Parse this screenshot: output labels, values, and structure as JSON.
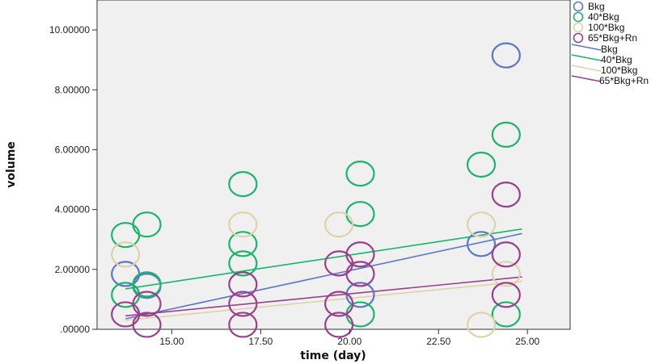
{
  "chart_data": {
    "type": "scatter",
    "xlabel": "time (day)",
    "ylabel": "volume",
    "xlim": [
      12.9,
      26.2
    ],
    "ylim": [
      0,
      11
    ],
    "xticks": [
      15,
      17.5,
      20,
      22.5,
      25
    ],
    "xtick_labels": [
      "15.00",
      "17.50",
      "20.00",
      "22.50",
      "25.00"
    ],
    "yticks": [
      0,
      2,
      4,
      6,
      8,
      10
    ],
    "ytick_labels": [
      ".00000",
      "2.00000",
      "4.00000",
      "6.00000",
      "8.00000",
      "10.00000"
    ],
    "grid": false,
    "legend_position": "right",
    "series": [
      {
        "name": "Bkg",
        "color": "#5b77c9",
        "marker": "circle-open",
        "points": [
          [
            13.7,
            1.85
          ],
          [
            14.3,
            1.45
          ],
          [
            20.3,
            1.15
          ],
          [
            23.7,
            2.85
          ],
          [
            24.4,
            9.15
          ]
        ]
      },
      {
        "name": "40*Bkg",
        "color": "#18b56a",
        "marker": "circle-open",
        "points": [
          [
            13.7,
            3.15
          ],
          [
            14.3,
            3.5
          ],
          [
            13.7,
            1.15
          ],
          [
            14.3,
            1.5
          ],
          [
            17.0,
            4.85
          ],
          [
            17.0,
            2.85
          ],
          [
            17.0,
            2.2
          ],
          [
            20.3,
            5.2
          ],
          [
            20.3,
            3.85
          ],
          [
            20.3,
            0.5
          ],
          [
            23.7,
            5.5
          ],
          [
            24.4,
            6.5
          ],
          [
            24.4,
            0.5
          ]
        ]
      },
      {
        "name": "100*Bkg",
        "color": "#ddd3a8",
        "marker": "circle-open",
        "points": [
          [
            13.7,
            2.5
          ],
          [
            17.0,
            3.5
          ],
          [
            19.7,
            3.5
          ],
          [
            23.7,
            3.5
          ],
          [
            23.7,
            0.15
          ],
          [
            24.4,
            1.85
          ]
        ]
      },
      {
        "name": "65*Bkg+Rn",
        "color": "#9b3f8c",
        "marker": "circle-open",
        "points": [
          [
            13.7,
            0.5
          ],
          [
            14.3,
            0.15
          ],
          [
            14.3,
            0.85
          ],
          [
            17.0,
            1.5
          ],
          [
            17.0,
            0.85
          ],
          [
            17.0,
            0.15
          ],
          [
            19.7,
            2.2
          ],
          [
            19.7,
            0.85
          ],
          [
            19.7,
            0.15
          ],
          [
            20.3,
            2.5
          ],
          [
            20.3,
            1.85
          ],
          [
            24.4,
            4.5
          ],
          [
            24.4,
            2.5
          ],
          [
            24.4,
            1.15
          ]
        ]
      }
    ],
    "fit_lines": [
      {
        "name": "Bkg",
        "color": "#5b77c9",
        "x": [
          13.7,
          24.85
        ],
        "y": [
          0.35,
          3.2
        ]
      },
      {
        "name": "40*Bkg",
        "color": "#18b56a",
        "x": [
          13.7,
          24.85
        ],
        "y": [
          1.35,
          3.35
        ]
      },
      {
        "name": "100*Bkg",
        "color": "#ddd3a8",
        "x": [
          13.7,
          24.85
        ],
        "y": [
          0.3,
          1.6
        ]
      },
      {
        "name": "65*Bkg+Rn",
        "color": "#9b3f8c",
        "x": [
          13.7,
          24.85
        ],
        "y": [
          0.45,
          1.75
        ]
      }
    ],
    "legend": {
      "markers": [
        {
          "label": "Bkg",
          "color": "#5b77c9"
        },
        {
          "label": "40*Bkg",
          "color": "#18b56a"
        },
        {
          "label": "100*Bkg",
          "color": "#ddd3a8"
        },
        {
          "label": "65*Bkg+Rn",
          "color": "#9b3f8c"
        }
      ],
      "lines": [
        {
          "label": "Bkg",
          "color": "#5b77c9"
        },
        {
          "label": "40*Bkg",
          "color": "#18b56a"
        },
        {
          "label": "100*Bkg",
          "color": "#ddd3a8"
        },
        {
          "label": "65*Bkg+Rn",
          "color": "#9b3f8c"
        }
      ]
    }
  }
}
